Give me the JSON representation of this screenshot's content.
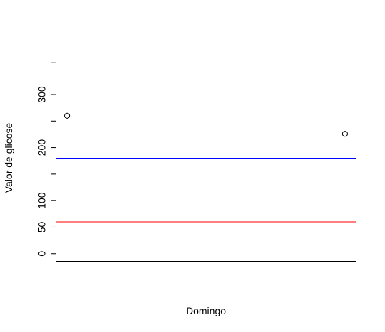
{
  "chart_data": {
    "type": "scatter",
    "title": "",
    "xlabel": "Domingo",
    "ylabel": "Valor de glicose",
    "xlim": [
      0.96,
      2.04
    ],
    "ylim": [
      -14.4,
      374.4
    ],
    "y_ticks": [
      0,
      50,
      100,
      200,
      300
    ],
    "y_tick_labels": [
      "0",
      "50",
      "100",
      "200",
      "300"
    ],
    "y_minor_ticks": [
      150,
      250,
      360
    ],
    "show_x_ticks": false,
    "grid": false,
    "legend": "none",
    "series": [
      {
        "marker": "open-circle",
        "color": "#000000",
        "points": [
          {
            "x": 1,
            "y": 260
          },
          {
            "x": 2,
            "y": 226
          }
        ]
      }
    ],
    "reference_lines": [
      {
        "y": 180,
        "color": "#0000ff"
      },
      {
        "y": 60,
        "color": "#ff0000"
      }
    ]
  }
}
